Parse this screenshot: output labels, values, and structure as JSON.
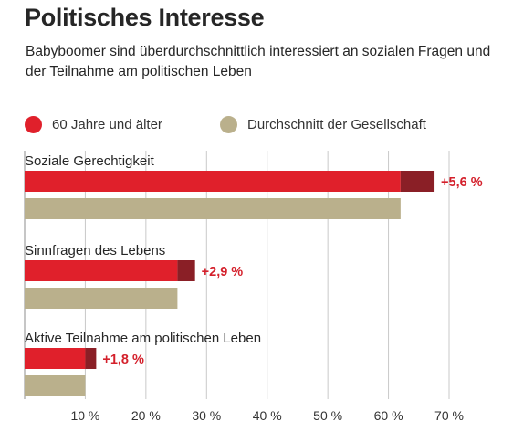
{
  "header": {
    "title": "Politisches Interesse",
    "subtitle": "Babyboomer sind überdurchschnittlich interessiert an sozialen Fragen und der Teilnahme am politischen Leben"
  },
  "legend": {
    "elderly": "60 Jahre und älter",
    "average": "Durchschnitt der Gesellschaft"
  },
  "colors": {
    "elderly": "#e0202b",
    "difference": "#8a1f26",
    "average": "#bab08c",
    "diff_label": "#d4202b"
  },
  "chart_data": {
    "type": "bar",
    "orientation": "horizontal",
    "categories": [
      "Soziale Gerechtigkeit",
      "Sinnfragen des Lebens",
      "Aktive Teilnahme am politischen Leben"
    ],
    "series": [
      {
        "name": "60 Jahre und älter",
        "values": [
          67.6,
          28.1,
          11.8
        ]
      },
      {
        "name": "Durchschnitt der Gesellschaft",
        "values": [
          62.0,
          25.2,
          10.0
        ]
      }
    ],
    "difference_labels": [
      "+5,6 %",
      "+2,9 %",
      "+1,8 %"
    ],
    "xlim": [
      0,
      70
    ],
    "ticks": [
      10,
      20,
      30,
      40,
      50,
      60,
      70
    ],
    "tick_labels": [
      "10 %",
      "20 %",
      "30 %",
      "40 %",
      "50 %",
      "60 %",
      "70 %"
    ],
    "grid": true
  }
}
